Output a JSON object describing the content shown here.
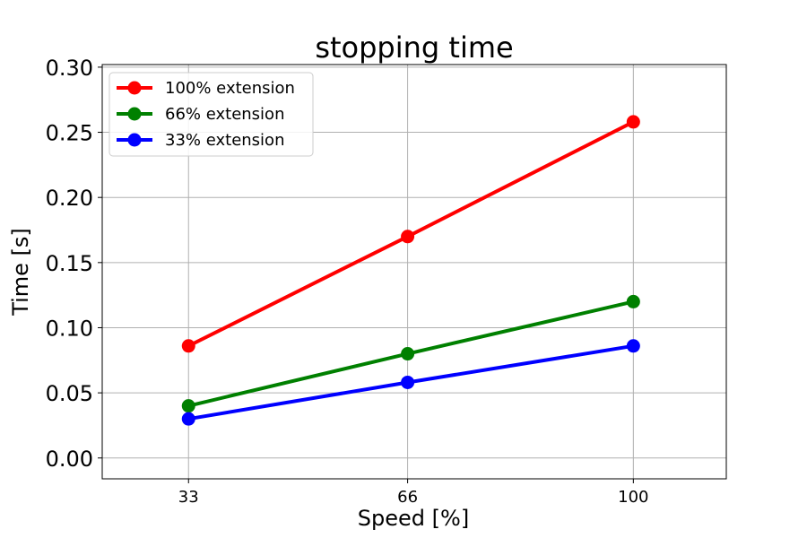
{
  "chart_data": {
    "type": "line",
    "title": "stopping time",
    "xlabel": "Speed [%]",
    "ylabel": "Time [s]",
    "x": [
      33,
      66,
      100
    ],
    "x_ticks": [
      "33",
      "66",
      "100"
    ],
    "xlim": [
      20,
      114
    ],
    "ylim": [
      -0.016,
      0.302
    ],
    "y_ticks": [
      "0.00",
      "0.05",
      "0.10",
      "0.15",
      "0.20",
      "0.25",
      "0.30"
    ],
    "grid": true,
    "legend_position": "top-left",
    "series": [
      {
        "name": "100% extension",
        "color": "#ff0000",
        "values": [
          0.086,
          0.17,
          0.258
        ]
      },
      {
        "name": "66% extension",
        "color": "#008000",
        "values": [
          0.04,
          0.08,
          0.12
        ]
      },
      {
        "name": "33% extension",
        "color": "#0000ff",
        "values": [
          0.03,
          0.058,
          0.086
        ]
      }
    ]
  }
}
